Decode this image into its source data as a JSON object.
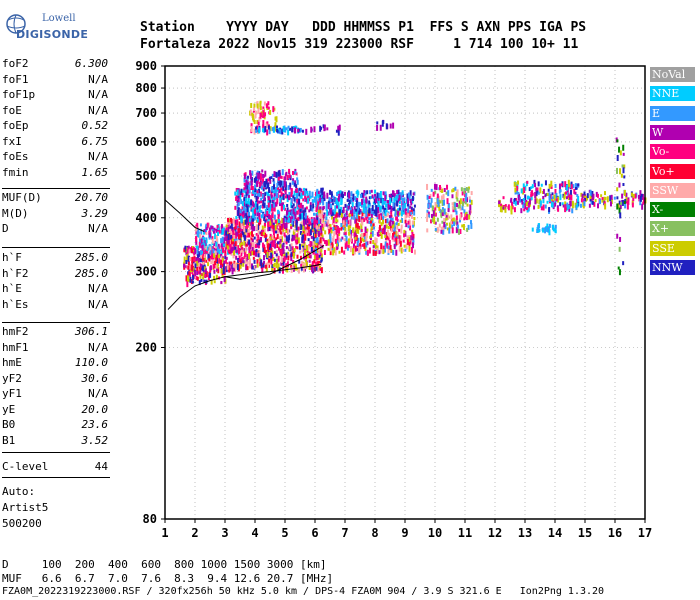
{
  "logo": {
    "line1": "Lowell",
    "line2": "DIGISONDE"
  },
  "header": {
    "row1": "Station    YYYY DAY   DDD HHMMSS P1  FFS S AXN PPS IGA PS",
    "row2": "Fortaleza 2022 Nov15 319 223000 RSF     1 714 100 10+ 11"
  },
  "params_group1": [
    {
      "name": "foF2",
      "value": "6.300"
    },
    {
      "name": "foF1",
      "value": "N/A"
    },
    {
      "name": "foF1p",
      "value": "N/A"
    },
    {
      "name": "foE",
      "value": "N/A"
    },
    {
      "name": "foEp",
      "value": "0.52"
    },
    {
      "name": "fxI",
      "value": "6.75"
    },
    {
      "name": "foEs",
      "value": "N/A"
    },
    {
      "name": "fmin",
      "value": "1.65"
    }
  ],
  "params_group2": [
    {
      "name": "MUF(D)",
      "value": "20.70"
    },
    {
      "name": "M(D)",
      "value": "3.29"
    },
    {
      "name": "D",
      "value": "N/A"
    }
  ],
  "params_group3": [
    {
      "name": "h`F",
      "value": "285.0"
    },
    {
      "name": "h`F2",
      "value": "285.0"
    },
    {
      "name": "h`E",
      "value": "N/A"
    },
    {
      "name": "h`Es",
      "value": "N/A"
    }
  ],
  "params_group4": [
    {
      "name": "hmF2",
      "value": "306.1"
    },
    {
      "name": "hmF1",
      "value": "N/A"
    },
    {
      "name": "hmE",
      "value": "110.0"
    },
    {
      "name": "yF2",
      "value": "30.6"
    },
    {
      "name": "yF1",
      "value": "N/A"
    },
    {
      "name": "yE",
      "value": "20.0"
    },
    {
      "name": "B0",
      "value": "23.6"
    },
    {
      "name": "B1",
      "value": "3.52"
    }
  ],
  "clevel": {
    "name": "C-level",
    "value": "44"
  },
  "auto": {
    "line1": "Auto:",
    "line2": "Artist5",
    "line3": "500200"
  },
  "legend": [
    {
      "label": "NoVal",
      "color": "#a0a0a0"
    },
    {
      "label": "NNE",
      "color": "#00ccff"
    },
    {
      "label": "E",
      "color": "#3399ff"
    },
    {
      "label": "W",
      "color": "#b000b0"
    },
    {
      "label": "Vo-",
      "color": "#ff0080"
    },
    {
      "label": "Vo+",
      "color": "#ff0033"
    },
    {
      "label": "SSW",
      "color": "#ffaaaa"
    },
    {
      "label": "X-",
      "color": "#008000"
    },
    {
      "label": "X+",
      "color": "#88c060"
    },
    {
      "label": "SSE",
      "color": "#cccc00"
    },
    {
      "label": "NNW",
      "color": "#2020c0"
    }
  ],
  "bottom": {
    "row1": "D     100  200  400  600  800 1000 1500 3000 [km]",
    "row2": "MUF   6.6  6.7  7.0  7.6  8.3  9.4 12.6 20.7 [MHz]",
    "row3": "FZA0M_2022319223000.RSF / 320fx256h 50 kHz 5.0 km / DPS-4 FZA0M 904 / 3.9 S 321.6 E   Ion2Png 1.3.20"
  },
  "chart_data": {
    "type": "scatter",
    "xlim": [
      1,
      17
    ],
    "ylim": [
      80,
      900
    ],
    "yscale": "log",
    "xticks": [
      1,
      2,
      3,
      4,
      5,
      6,
      7,
      8,
      9,
      10,
      11,
      12,
      13,
      14,
      15,
      16,
      17
    ],
    "yticks": [
      80,
      200,
      300,
      400,
      500,
      600,
      700,
      800,
      900
    ],
    "grid": true,
    "legend_position": "right",
    "seed": 20221115,
    "clusters": [
      {
        "x": [
          1.6,
          3.0
        ],
        "y": [
          285,
          345
        ],
        "n": 260,
        "colors": [
          "#ff0033",
          "#ff0080",
          "#cccc00",
          "#b000b0",
          "#ffaaaa",
          "#2020c0"
        ]
      },
      {
        "x": [
          2.0,
          3.5
        ],
        "y": [
          335,
          390
        ],
        "n": 220,
        "colors": [
          "#3399ff",
          "#00ccff",
          "#ff0080",
          "#b000b0",
          "#ffaaaa"
        ]
      },
      {
        "x": [
          3.0,
          6.2
        ],
        "y": [
          305,
          400
        ],
        "n": 750,
        "colors": [
          "#ff0033",
          "#ff0080",
          "#cccc00",
          "#b000b0",
          "#2020c0",
          "#ffaaaa"
        ]
      },
      {
        "x": [
          3.3,
          6.3
        ],
        "y": [
          395,
          470
        ],
        "n": 480,
        "colors": [
          "#3399ff",
          "#00ccff",
          "#b000b0",
          "#ff0080",
          "#2020c0"
        ]
      },
      {
        "x": [
          3.6,
          5.4
        ],
        "y": [
          470,
          520
        ],
        "n": 140,
        "colors": [
          "#b000b0",
          "#3399ff",
          "#ff0080",
          "#2020c0"
        ]
      },
      {
        "x": [
          6.0,
          9.3
        ],
        "y": [
          335,
          420
        ],
        "n": 520,
        "colors": [
          "#ff0033",
          "#ff0080",
          "#cccc00",
          "#b000b0",
          "#3399ff",
          "#ffaaaa"
        ]
      },
      {
        "x": [
          6.2,
          9.3
        ],
        "y": [
          415,
          465
        ],
        "n": 300,
        "colors": [
          "#3399ff",
          "#00ccff",
          "#b000b0",
          "#2020c0"
        ]
      },
      {
        "x": [
          9.7,
          11.2
        ],
        "y": [
          375,
          480
        ],
        "n": 180,
        "colors": [
          "#ffaaaa",
          "#ff0080",
          "#cccc00",
          "#b000b0",
          "#3399ff",
          "#88c060"
        ]
      },
      {
        "x": [
          12.1,
          12.6
        ],
        "y": [
          420,
          450
        ],
        "n": 25,
        "colors": [
          "#cccc00",
          "#ff0080",
          "#b000b0"
        ]
      },
      {
        "x": [
          12.6,
          14.8
        ],
        "y": [
          420,
          490
        ],
        "n": 190,
        "colors": [
          "#2020c0",
          "#3399ff",
          "#00ccff",
          "#b000b0",
          "#ff0080",
          "#cccc00"
        ]
      },
      {
        "x": [
          14.8,
          17.0
        ],
        "y": [
          430,
          465
        ],
        "n": 90,
        "colors": [
          "#b000b0",
          "#3399ff",
          "#2020c0",
          "#ff0080",
          "#cccc00"
        ]
      },
      {
        "x": [
          3.8,
          4.7
        ],
        "y": [
          640,
          750
        ],
        "n": 70,
        "colors": [
          "#cccc00",
          "#ffaaaa",
          "#ff0080"
        ]
      },
      {
        "x": [
          4.0,
          5.5
        ],
        "y": [
          640,
          655
        ],
        "n": 40,
        "colors": [
          "#3399ff",
          "#00ccff",
          "#2020c0"
        ]
      },
      {
        "x": [
          5.2,
          6.8
        ],
        "y": [
          640,
          660
        ],
        "n": 20,
        "colors": [
          "#2020c0",
          "#b000b0"
        ]
      },
      {
        "x": [
          8.0,
          8.6
        ],
        "y": [
          655,
          675
        ],
        "n": 10,
        "colors": [
          "#2020c0",
          "#b000b0"
        ]
      },
      {
        "x": [
          13.2,
          14.0
        ],
        "y": [
          375,
          390
        ],
        "n": 30,
        "colors": [
          "#00ccff",
          "#3399ff"
        ]
      },
      {
        "x": [
          16.0,
          16.3
        ],
        "y": [
          300,
          620
        ],
        "n": 30,
        "colors": [
          "#cccc00",
          "#88c060",
          "#008000",
          "#b000b0",
          "#2020c0"
        ]
      }
    ],
    "lines": [
      {
        "color": "#000000",
        "x": [
          1.1,
          1.5,
          2.0,
          2.5,
          3.0,
          3.5,
          4.0,
          4.5,
          5.0,
          5.5,
          6.0,
          6.2
        ],
        "y": [
          245,
          262,
          278,
          286,
          292,
          295,
          298,
          300,
          303,
          306,
          310,
          312
        ]
      },
      {
        "color": "#000000",
        "x": [
          3.0,
          3.5,
          4.5,
          5.5,
          6.3
        ],
        "y": [
          292,
          288,
          296,
          320,
          345
        ]
      },
      {
        "color": "#000000",
        "x": [
          1.0,
          1.5,
          2.0,
          2.3
        ],
        "y": [
          440,
          410,
          380,
          372
        ]
      }
    ]
  }
}
